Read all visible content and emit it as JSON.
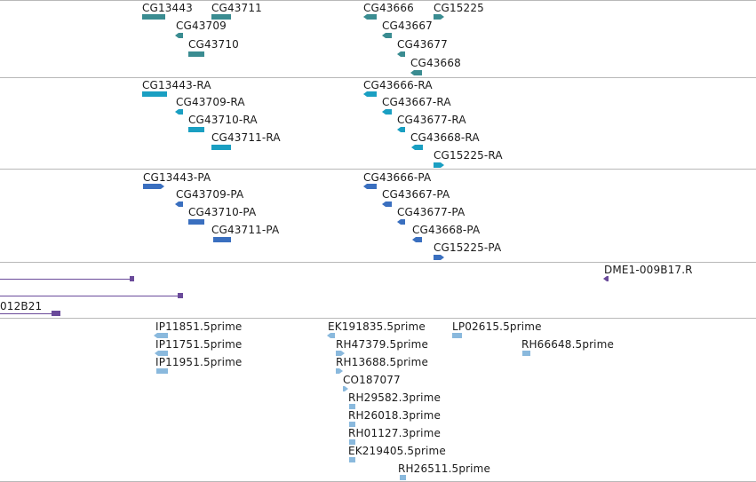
{
  "colors": {
    "gene": "#3a8c91",
    "transcript": "#1a9fc2",
    "peptide": "#3a6fbf",
    "clone": "#6a4a9a",
    "est": "#8ab9dd",
    "divider": "#b8b8b8"
  },
  "genes": {
    "cg13443": "CG13443",
    "cg43711": "CG43711",
    "cg43709": "CG43709",
    "cg43710": "CG43710",
    "cg43666": "CG43666",
    "cg15225": "CG15225",
    "cg43667": "CG43667",
    "cg43677": "CG43677",
    "cg43668": "CG43668"
  },
  "transcripts": {
    "cg13443_ra": "CG13443-RA",
    "cg43709_ra": "CG43709-RA",
    "cg43710_ra": "CG43710-RA",
    "cg43711_ra": "CG43711-RA",
    "cg43666_ra": "CG43666-RA",
    "cg43667_ra": "CG43667-RA",
    "cg43677_ra": "CG43677-RA",
    "cg43668_ra": "CG43668-RA",
    "cg15225_ra": "CG15225-RA"
  },
  "peptides": {
    "cg13443_pa": "CG13443-PA",
    "cg43709_pa": "CG43709-PA",
    "cg43710_pa": "CG43710-PA",
    "cg43711_pa": "CG43711-PA",
    "cg43666_pa": "CG43666-PA",
    "cg43667_pa": "CG43667-PA",
    "cg43677_pa": "CG43677-PA",
    "cg43668_pa": "CG43668-PA",
    "cg15225_pa": "CG15225-PA"
  },
  "clones": {
    "dme1": "DME1-009B17.R",
    "partial": "012B21"
  },
  "ests": {
    "ip11851": "IP11851.5prime",
    "ip11751": "IP11751.5prime",
    "ip11951": "IP11951.5prime",
    "ek191835": "EK191835.5prime",
    "lp02615": "LP02615.5prime",
    "rh47379": "RH47379.5prime",
    "rh66648": "RH66648.5prime",
    "rh13688": "RH13688.5prime",
    "co187077": "CO187077",
    "rh29582": "RH29582.3prime",
    "rh26018": "RH26018.3prime",
    "rh01127": "RH01127.3prime",
    "ek219405": "EK219405.5prime",
    "rh26511": "RH26511.5prime"
  }
}
